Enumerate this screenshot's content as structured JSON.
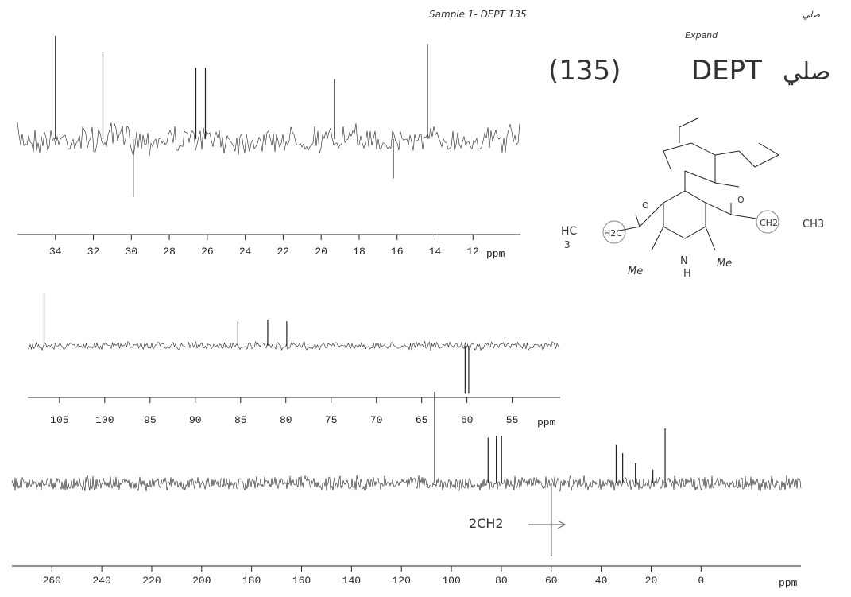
{
  "header": {
    "sample": "Sample 1- DEPT 135",
    "expand": "Expand",
    "code": "(135)",
    "method": "DEPT",
    "name": "صلي"
  },
  "annotation": "2CH2",
  "structure": {
    "labels": [
      "HC",
      "3",
      "H2C",
      "O",
      "O",
      "CH2",
      "CH3",
      "Me",
      "Me",
      "N",
      "H"
    ]
  },
  "spectra": [
    {
      "xlim": [
        36.0,
        9.5
      ],
      "xticks": [
        34,
        32,
        30,
        28,
        26,
        24,
        22,
        20,
        18,
        16,
        14,
        12
      ],
      "unit": "ppm",
      "peaks": [
        {
          "ppm": 34.0,
          "intensity": 1.0
        },
        {
          "ppm": 31.5,
          "intensity": 0.85
        },
        {
          "ppm": 29.9,
          "intensity": -0.56
        },
        {
          "ppm": 26.6,
          "intensity": 0.69
        },
        {
          "ppm": 26.1,
          "intensity": 0.69
        },
        {
          "ppm": 19.3,
          "intensity": 0.58
        },
        {
          "ppm": 16.2,
          "intensity": -0.38
        },
        {
          "ppm": 14.4,
          "intensity": 0.92
        }
      ]
    },
    {
      "xlim": [
        108.5,
        49.7
      ],
      "xticks": [
        105,
        100,
        95,
        90,
        85,
        80,
        75,
        70,
        65,
        60,
        55
      ],
      "unit": "ppm",
      "peaks": [
        {
          "ppm": 106.7,
          "intensity": 1.0
        },
        {
          "ppm": 85.3,
          "intensity": 0.45
        },
        {
          "ppm": 82.0,
          "intensity": 0.49
        },
        {
          "ppm": 79.9,
          "intensity": 0.46
        },
        {
          "ppm": 60.2,
          "intensity": -0.9
        },
        {
          "ppm": 59.8,
          "intensity": -0.9
        }
      ]
    },
    {
      "xlim": [
        276,
        -40
      ],
      "xticks": [
        260,
        240,
        220,
        200,
        180,
        160,
        140,
        120,
        100,
        80,
        60,
        40,
        20,
        0
      ],
      "unit": "ppm",
      "peaks": [
        {
          "ppm": 106.7,
          "intensity": 1.0
        },
        {
          "ppm": 85.3,
          "intensity": 0.5
        },
        {
          "ppm": 82.0,
          "intensity": 0.52
        },
        {
          "ppm": 79.9,
          "intensity": 0.52
        },
        {
          "ppm": 60.0,
          "intensity": -0.8
        },
        {
          "ppm": 34.0,
          "intensity": 0.42
        },
        {
          "ppm": 31.4,
          "intensity": 0.33
        },
        {
          "ppm": 26.3,
          "intensity": 0.22
        },
        {
          "ppm": 19.3,
          "intensity": 0.15
        },
        {
          "ppm": 14.4,
          "intensity": 0.6
        }
      ]
    }
  ]
}
